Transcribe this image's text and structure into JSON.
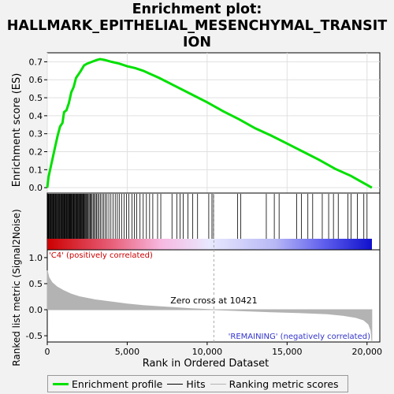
{
  "title_line1": "Enrichment plot:",
  "title_line2": "HALLMARK_EPITHELIAL_MESENCHYMAL_TRANSIT",
  "title_line3": "ION",
  "colors": {
    "es_line": "#00e000",
    "hits": "#000000",
    "metric_fill": "#b3b3b3"
  },
  "chart_data": {
    "type": "line",
    "top": {
      "ylabel": "Enrichment score (ES)",
      "ylim": [
        -0.03,
        0.75
      ],
      "yticks": [
        "0.0",
        "0.1",
        "0.2",
        "0.3",
        "0.4",
        "0.5",
        "0.6",
        "0.7"
      ],
      "ytick_values": [
        0,
        0.1,
        0.2,
        0.3,
        0.4,
        0.5,
        0.6,
        0.7
      ],
      "es_curve": [
        [
          0,
          0
        ],
        [
          80,
          0.06
        ],
        [
          200,
          0.11
        ],
        [
          350,
          0.17
        ],
        [
          500,
          0.23
        ],
        [
          650,
          0.29
        ],
        [
          800,
          0.34
        ],
        [
          950,
          0.36
        ],
        [
          1050,
          0.42
        ],
        [
          1200,
          0.43
        ],
        [
          1350,
          0.47
        ],
        [
          1500,
          0.53
        ],
        [
          1650,
          0.56
        ],
        [
          1800,
          0.61
        ],
        [
          1950,
          0.63
        ],
        [
          2100,
          0.65
        ],
        [
          2300,
          0.68
        ],
        [
          2500,
          0.69
        ],
        [
          2800,
          0.7
        ],
        [
          3100,
          0.71
        ],
        [
          3300,
          0.715
        ],
        [
          3600,
          0.71
        ],
        [
          4000,
          0.7
        ],
        [
          4500,
          0.69
        ],
        [
          5000,
          0.675
        ],
        [
          5500,
          0.665
        ],
        [
          6000,
          0.65
        ],
        [
          6500,
          0.63
        ],
        [
          7000,
          0.61
        ],
        [
          8000,
          0.565
        ],
        [
          9000,
          0.52
        ],
        [
          10000,
          0.475
        ],
        [
          11000,
          0.425
        ],
        [
          12000,
          0.38
        ],
        [
          13000,
          0.33
        ],
        [
          14000,
          0.29
        ],
        [
          15000,
          0.245
        ],
        [
          16000,
          0.2
        ],
        [
          17000,
          0.155
        ],
        [
          18000,
          0.105
        ],
        [
          19000,
          0.065
        ],
        [
          19800,
          0.025
        ],
        [
          20000,
          0.015
        ],
        [
          20300,
          0.0
        ]
      ],
      "hits": [
        30,
        60,
        90,
        130,
        170,
        200,
        240,
        280,
        310,
        350,
        390,
        420,
        460,
        500,
        540,
        580,
        620,
        660,
        700,
        740,
        780,
        820,
        860,
        900,
        930,
        960,
        1000,
        1040,
        1080,
        1110,
        1150,
        1190,
        1230,
        1270,
        1300,
        1340,
        1380,
        1410,
        1450,
        1480,
        1520,
        1560,
        1600,
        1640,
        1670,
        1710,
        1750,
        1790,
        1830,
        1870,
        1910,
        1950,
        1990,
        2030,
        2070,
        2110,
        2150,
        2190,
        2230,
        2270,
        2310,
        2360,
        2410,
        2460,
        2510,
        2560,
        2620,
        2680,
        2740,
        2800,
        2870,
        2940,
        3010,
        3080,
        3160,
        3240,
        3330,
        3420,
        3520,
        3620,
        3730,
        3850,
        3980,
        4120,
        4250,
        4380,
        4500,
        4650,
        4800,
        4950,
        5100,
        5300,
        5450,
        5600,
        5800,
        6000,
        6200,
        6400,
        6600,
        6900,
        7100,
        7800,
        8100,
        8300,
        8500,
        8800,
        9100,
        9400,
        10100,
        10300,
        10400,
        11900,
        12100,
        13700,
        14200,
        14500,
        15600,
        15900,
        16300,
        16600,
        17200,
        17600,
        17900,
        18200,
        18800,
        19000,
        19400,
        19800,
        20000
      ]
    },
    "bottom": {
      "ylabel": "Ranked list metric (Signal2Noise)",
      "xlabel": "Rank in Ordered Dataset",
      "ylim": [
        -0.62,
        1.15
      ],
      "yticks": [
        "1.0",
        "0.5",
        "0.0",
        "-0.5"
      ],
      "ytick_values": [
        1.0,
        0.5,
        0.0,
        -0.5
      ],
      "xlim": [
        0,
        20800
      ],
      "xticks": [
        "0",
        "5,000",
        "10,000",
        "15,000",
        "20,000"
      ],
      "xtick_values": [
        0,
        5000,
        10000,
        15000,
        20000
      ],
      "zero_cross": 10421,
      "zero_cross_label": "Zero cross at 10421",
      "pos_label": "'C4' (positively correlated)",
      "neg_label": "'REMAINING' (negatively correlated)",
      "metric_curve": [
        [
          0,
          0.75
        ],
        [
          100,
          0.62
        ],
        [
          300,
          0.52
        ],
        [
          600,
          0.44
        ],
        [
          1000,
          0.37
        ],
        [
          1500,
          0.3
        ],
        [
          2000,
          0.25
        ],
        [
          3000,
          0.19
        ],
        [
          4000,
          0.15
        ],
        [
          5000,
          0.11
        ],
        [
          6000,
          0.08
        ],
        [
          7000,
          0.06
        ],
        [
          8000,
          0.04
        ],
        [
          9000,
          0.02
        ],
        [
          10421,
          0.0
        ],
        [
          12000,
          -0.02
        ],
        [
          14000,
          -0.04
        ],
        [
          16000,
          -0.06
        ],
        [
          17500,
          -0.08
        ],
        [
          18500,
          -0.11
        ],
        [
          19300,
          -0.15
        ],
        [
          19800,
          -0.2
        ],
        [
          20100,
          -0.28
        ],
        [
          20250,
          -0.4
        ],
        [
          20300,
          -0.6
        ]
      ]
    }
  },
  "legend": {
    "items": [
      {
        "label": "Enrichment profile",
        "color": "#00e000"
      },
      {
        "label": "Hits",
        "color": "#000000"
      },
      {
        "label": "Ranking metric scores",
        "color": "#b3b3b3"
      }
    ]
  }
}
